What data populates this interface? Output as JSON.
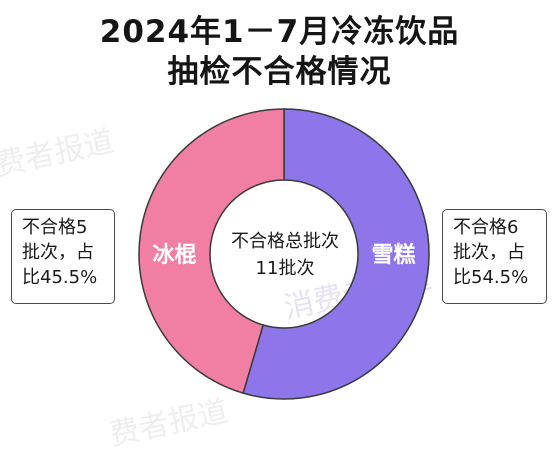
{
  "title": {
    "line1": "2024年1－7月冷冻饮品",
    "line2": "抽检不合格情况"
  },
  "chart_data": {
    "type": "pie",
    "donut": true,
    "title": "2024年1－7月冷冻饮品抽检不合格情况",
    "center_label": {
      "line1": "不合格总批次",
      "line2": "11批次"
    },
    "total_batches": 11,
    "slices": [
      {
        "label": "雪糕",
        "batches": 6,
        "percent": 54.5,
        "color": "#8e76ea",
        "callout": [
          "不合格6",
          "批次，占",
          "比54.5%"
        ]
      },
      {
        "label": "冰棍",
        "batches": 5,
        "percent": 45.5,
        "color": "#f17fa3",
        "callout": [
          "不合格5",
          "批次，占",
          "比45.5%"
        ]
      }
    ]
  },
  "watermark": {
    "text_a": "费者报道",
    "text_b": "消费者报道",
    "color": "#eeeeee"
  }
}
